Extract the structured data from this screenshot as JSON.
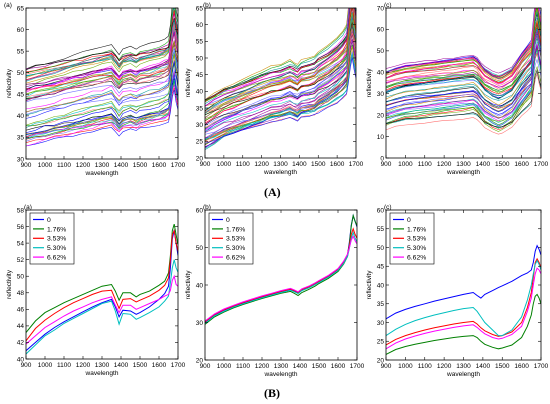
{
  "figure_labels": {
    "top": "(A)",
    "bottom": "(B)"
  },
  "chart_data": [
    {
      "type": "line",
      "panel_label": "(a)",
      "xlabel": "wavelength",
      "ylabel": "reflectivity",
      "xlim": [
        900,
        1700
      ],
      "ylim": [
        30,
        65
      ],
      "xticks": [
        900,
        1000,
        1100,
        1200,
        1300,
        1400,
        1500,
        1600,
        1700
      ],
      "yticks": [
        30,
        35,
        40,
        45,
        50,
        55,
        60,
        65
      ],
      "x": [
        900,
        950,
        1000,
        1050,
        1100,
        1150,
        1200,
        1250,
        1300,
        1350,
        1370,
        1390,
        1410,
        1450,
        1480,
        1500,
        1550,
        1600,
        1630,
        1650,
        1660,
        1670,
        1680,
        1690,
        1700
      ],
      "band": {
        "lower": 34,
        "upper": 52,
        "count": 60
      },
      "series": [
        {
          "values": [
            42,
            42.5,
            43,
            43.5,
            44,
            44.5,
            45,
            45.5,
            46,
            46.5,
            45.5,
            44.5,
            45.5,
            46,
            45.5,
            46,
            46.5,
            47,
            47.5,
            48,
            50,
            54,
            56,
            53,
            51
          ]
        }
      ]
    },
    {
      "type": "line",
      "panel_label": "(b)",
      "xlabel": "wavelength",
      "ylabel": "reflectivity",
      "xlim": [
        900,
        1700
      ],
      "ylim": [
        20,
        65
      ],
      "xticks": [
        900,
        1000,
        1100,
        1200,
        1300,
        1400,
        1500,
        1600,
        1700
      ],
      "yticks": [
        20,
        25,
        30,
        35,
        40,
        45,
        50,
        55,
        60,
        65
      ],
      "x": [
        900,
        950,
        1000,
        1050,
        1100,
        1150,
        1200,
        1250,
        1300,
        1350,
        1370,
        1390,
        1410,
        1450,
        1480,
        1500,
        1550,
        1600,
        1630,
        1650,
        1660,
        1670,
        1680,
        1690,
        1700
      ],
      "band": {
        "lower": 25,
        "upper": 40,
        "count": 60
      },
      "series": [
        {
          "values": [
            30,
            31.5,
            33,
            34,
            35,
            36,
            37,
            38,
            38.5,
            39.5,
            39,
            38.5,
            39.5,
            40,
            40.5,
            41.5,
            43,
            45,
            46.5,
            48,
            52,
            58,
            61,
            57,
            54
          ]
        }
      ]
    },
    {
      "type": "line",
      "panel_label": "(c)",
      "xlabel": "wavelength",
      "ylabel": "reflectivity",
      "xlim": [
        900,
        1700
      ],
      "ylim": [
        0,
        70
      ],
      "xticks": [
        900,
        1000,
        1100,
        1200,
        1300,
        1400,
        1500,
        1600,
        1700
      ],
      "yticks": [
        0,
        10,
        20,
        30,
        40,
        50,
        60,
        70
      ],
      "x": [
        900,
        950,
        1000,
        1050,
        1100,
        1150,
        1200,
        1250,
        1300,
        1350,
        1370,
        1390,
        1410,
        1450,
        1480,
        1500,
        1550,
        1600,
        1630,
        1650,
        1660,
        1670,
        1680,
        1690,
        1700
      ],
      "band": {
        "lower": 10,
        "upper": 42,
        "count": 60
      },
      "series": [
        {
          "values": [
            26,
            27.5,
            28.5,
            29,
            29.5,
            30,
            30.5,
            31,
            31.5,
            32,
            31,
            29,
            27,
            25,
            24,
            24.5,
            27,
            33,
            36,
            38,
            45,
            52,
            55,
            50,
            46
          ]
        }
      ]
    },
    {
      "type": "line",
      "panel_label": "(a)",
      "xlabel": "wavelength",
      "ylabel": "reflectivity",
      "xlim": [
        900,
        1700
      ],
      "ylim": [
        40,
        58
      ],
      "xticks": [
        900,
        1000,
        1100,
        1200,
        1300,
        1400,
        1500,
        1600,
        1700
      ],
      "yticks": [
        40,
        42,
        44,
        46,
        48,
        50,
        52,
        54,
        56,
        58
      ],
      "x": [
        900,
        950,
        1000,
        1050,
        1100,
        1150,
        1200,
        1250,
        1300,
        1350,
        1370,
        1390,
        1410,
        1450,
        1480,
        1500,
        1550,
        1600,
        1630,
        1650,
        1660,
        1670,
        1680,
        1690,
        1700
      ],
      "legend_position": "top-left",
      "series": [
        {
          "name": "0",
          "color": "#0000ff",
          "values": [
            41.0,
            42.0,
            43.0,
            43.8,
            44.5,
            45.1,
            45.7,
            46.3,
            46.8,
            47.2,
            46.3,
            45.1,
            45.9,
            45.8,
            45.4,
            45.6,
            46.3,
            47.2,
            47.9,
            48.8,
            51.0,
            54.5,
            55.6,
            54.0,
            52.5
          ]
        },
        {
          "name": "1.76%",
          "color": "#008000",
          "values": [
            43.2,
            44.6,
            45.6,
            46.2,
            46.8,
            47.3,
            47.8,
            48.3,
            48.8,
            49.0,
            48.2,
            47.1,
            48.0,
            48.0,
            47.5,
            47.8,
            48.2,
            48.9,
            49.4,
            50.4,
            52.5,
            55.5,
            56.3,
            55.0,
            53.8
          ]
        },
        {
          "name": "3.53%",
          "color": "#ff0000",
          "values": [
            42.2,
            43.7,
            44.7,
            45.5,
            46.2,
            46.8,
            47.3,
            47.8,
            48.2,
            48.3,
            47.2,
            46.1,
            47.2,
            47.3,
            46.9,
            47.1,
            47.6,
            48.3,
            48.9,
            49.8,
            52.0,
            55.0,
            55.5,
            54.0,
            53.0
          ]
        },
        {
          "name": "5.30%",
          "color": "#00bfbf",
          "values": [
            40.6,
            41.7,
            42.8,
            43.5,
            44.3,
            44.9,
            45.5,
            46.1,
            46.7,
            47.0,
            45.8,
            44.2,
            45.5,
            45.4,
            44.8,
            45.0,
            45.6,
            46.3,
            47.0,
            47.6,
            49.2,
            51.0,
            52.0,
            51.0,
            50.5
          ]
        },
        {
          "name": "6.62%",
          "color": "#ff00ff",
          "values": [
            41.8,
            42.8,
            43.8,
            44.5,
            45.2,
            45.8,
            46.3,
            46.8,
            47.2,
            47.5,
            46.5,
            45.6,
            46.5,
            46.5,
            46.0,
            46.2,
            46.7,
            47.2,
            47.6,
            47.8,
            48.3,
            49.5,
            50.0,
            49.0,
            48.8
          ]
        }
      ]
    },
    {
      "type": "line",
      "panel_label": "(b)",
      "xlabel": "wavelength",
      "ylabel": "reflectivity",
      "xlim": [
        900,
        1700
      ],
      "ylim": [
        20,
        60
      ],
      "xticks": [
        900,
        1000,
        1100,
        1200,
        1300,
        1400,
        1500,
        1600,
        1700
      ],
      "yticks": [
        20,
        30,
        40,
        50,
        60
      ],
      "x": [
        900,
        950,
        1000,
        1050,
        1100,
        1150,
        1200,
        1250,
        1300,
        1350,
        1370,
        1390,
        1410,
        1450,
        1480,
        1500,
        1550,
        1600,
        1630,
        1650,
        1660,
        1670,
        1680,
        1690,
        1700
      ],
      "legend_position": "top-left",
      "series": [
        {
          "name": "0",
          "color": "#0000ff",
          "values": [
            30.0,
            32.0,
            33.3,
            34.3,
            35.2,
            36.0,
            36.8,
            37.5,
            38.2,
            38.8,
            38.4,
            37.8,
            38.6,
            39.4,
            40.2,
            40.8,
            42.2,
            44.0,
            46.0,
            48.0,
            51.5,
            56.0,
            58.5,
            57.0,
            55.5
          ]
        },
        {
          "name": "1.76%",
          "color": "#008000",
          "values": [
            29.5,
            31.5,
            32.8,
            33.9,
            34.8,
            35.6,
            36.4,
            37.1,
            37.8,
            38.3,
            37.8,
            37.2,
            38.0,
            38.9,
            39.7,
            40.4,
            41.8,
            43.6,
            45.6,
            47.6,
            51.0,
            55.8,
            58.5,
            57.0,
            55.8
          ]
        },
        {
          "name": "3.53%",
          "color": "#ff0000",
          "values": [
            30.2,
            32.1,
            33.4,
            34.4,
            35.3,
            36.1,
            36.9,
            37.6,
            38.3,
            38.9,
            38.5,
            38.0,
            38.8,
            39.6,
            40.4,
            41.0,
            42.4,
            44.2,
            46.2,
            48.2,
            50.5,
            53.5,
            55.0,
            53.5,
            52.5
          ]
        },
        {
          "name": "5.30%",
          "color": "#00bfbf",
          "values": [
            29.8,
            31.8,
            33.0,
            34.1,
            35.0,
            35.8,
            36.6,
            37.3,
            38.0,
            38.6,
            38.2,
            37.7,
            38.5,
            39.3,
            40.1,
            40.7,
            42.1,
            43.9,
            45.8,
            47.6,
            49.8,
            52.5,
            54.0,
            52.5,
            51.5
          ]
        },
        {
          "name": "6.62%",
          "color": "#ff00ff",
          "values": [
            30.4,
            32.3,
            33.6,
            34.6,
            35.5,
            36.3,
            37.1,
            37.8,
            38.5,
            39.1,
            38.7,
            38.2,
            39.0,
            39.8,
            40.6,
            41.2,
            42.6,
            44.4,
            46.4,
            48.2,
            50.0,
            52.0,
            53.0,
            51.8,
            51.0
          ]
        }
      ]
    },
    {
      "type": "line",
      "panel_label": "(c)",
      "xlabel": "wavelength",
      "ylabel": "reflectivity",
      "xlim": [
        900,
        1700
      ],
      "ylim": [
        20,
        60
      ],
      "xticks": [
        900,
        1000,
        1100,
        1200,
        1300,
        1400,
        1500,
        1600,
        1700
      ],
      "yticks": [
        20,
        25,
        30,
        35,
        40,
        45,
        50,
        55,
        60
      ],
      "x": [
        900,
        950,
        1000,
        1050,
        1100,
        1150,
        1200,
        1250,
        1300,
        1350,
        1370,
        1390,
        1410,
        1450,
        1480,
        1500,
        1550,
        1600,
        1630,
        1650,
        1660,
        1670,
        1680,
        1690,
        1700
      ],
      "legend_position": "top-left",
      "series": [
        {
          "name": "0",
          "color": "#0000ff",
          "values": [
            31.0,
            32.5,
            33.5,
            34.3,
            35.0,
            35.7,
            36.3,
            36.9,
            37.5,
            38.0,
            37.2,
            36.5,
            37.5,
            38.5,
            39.3,
            39.8,
            41.0,
            42.5,
            43.2,
            44.0,
            46.0,
            49.0,
            50.5,
            49.5,
            48.0
          ]
        },
        {
          "name": "1.76%",
          "color": "#008000",
          "values": [
            21.5,
            22.8,
            23.6,
            24.2,
            24.7,
            25.2,
            25.6,
            26.0,
            26.3,
            26.5,
            26.0,
            25.0,
            24.2,
            23.4,
            23.0,
            23.2,
            24.0,
            26.0,
            29.0,
            32.0,
            35.0,
            37.0,
            37.5,
            36.5,
            35.0
          ]
        },
        {
          "name": "3.53%",
          "color": "#ff0000",
          "values": [
            24.0,
            25.5,
            26.5,
            27.3,
            28.0,
            28.6,
            29.1,
            29.6,
            30.0,
            30.3,
            29.6,
            28.6,
            27.8,
            26.8,
            26.3,
            26.5,
            27.5,
            30.0,
            34.0,
            38.0,
            42.0,
            46.0,
            47.0,
            46.0,
            44.5
          ]
        },
        {
          "name": "5.30%",
          "color": "#00bfbf",
          "values": [
            26.5,
            28.2,
            29.5,
            30.5,
            31.3,
            32.0,
            32.6,
            33.2,
            33.7,
            34.0,
            33.0,
            31.5,
            30.0,
            28.0,
            26.5,
            26.5,
            28.0,
            31.5,
            36.0,
            40.0,
            43.0,
            45.5,
            46.5,
            45.5,
            44.0
          ]
        },
        {
          "name": "6.62%",
          "color": "#ff00ff",
          "values": [
            23.0,
            24.5,
            25.6,
            26.4,
            27.1,
            27.7,
            28.2,
            28.7,
            29.1,
            29.4,
            28.7,
            27.8,
            27.0,
            26.0,
            25.6,
            25.8,
            26.8,
            29.0,
            33.0,
            36.5,
            40.0,
            43.0,
            44.5,
            44.0,
            43.0
          ]
        }
      ]
    }
  ]
}
